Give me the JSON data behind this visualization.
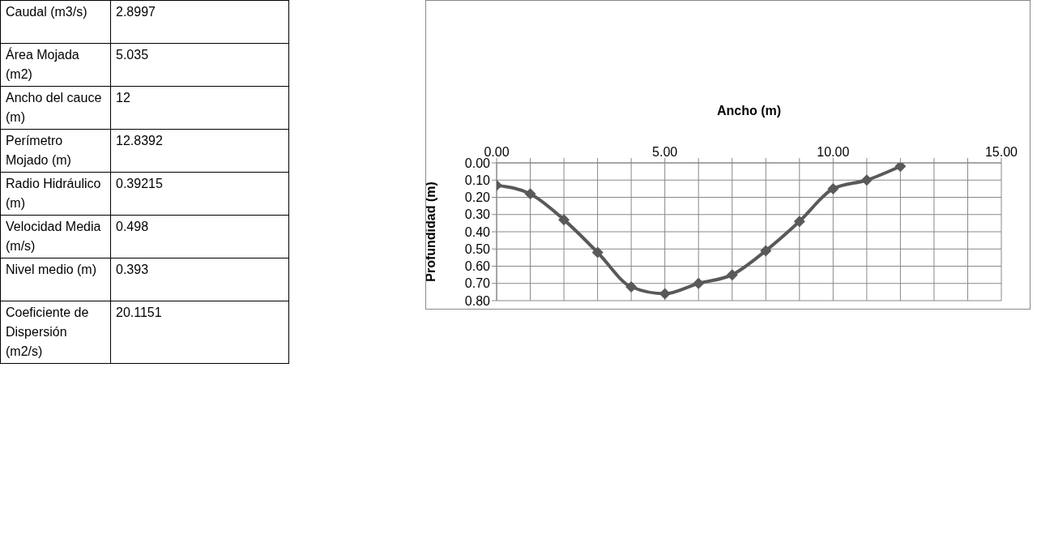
{
  "chart_data": [
    {
      "type": "other",
      "annotations": [
        "Caudal (m3/s)",
        "2.8997",
        "Área Mojada (m2)",
        "5.035",
        "Ancho del cauce (m)",
        "12",
        "Perímetro Mojado (m)",
        "12.8392",
        "Radio Hidráulico (m)",
        "0.39215",
        "Velocidad Media (m/s)",
        "0.498",
        "Nivel medio (m)",
        "0.393",
        "Coeficiente de Dispersión (m2/s)",
        "20.1151"
      ]
    },
    {
      "type": "line",
      "xlabel": "Ancho (m)",
      "ylabel": "Profundidad (m)",
      "x": [
        0,
        1,
        2,
        3,
        4,
        5,
        6,
        7,
        8,
        9,
        10,
        11,
        12
      ],
      "values": [
        0.13,
        0.18,
        0.33,
        0.52,
        0.72,
        0.76,
        0.7,
        0.65,
        0.51,
        0.34,
        0.15,
        0.1,
        0.02
      ],
      "color": "#595959",
      "marker": "diamond",
      "grid": true,
      "xlim": [
        0,
        15
      ],
      "xticks": [
        {
          "value": 0,
          "label": "0.00"
        },
        {
          "value": 1,
          "label": null
        },
        {
          "value": 2,
          "label": null
        },
        {
          "value": 3,
          "label": null
        },
        {
          "value": 4,
          "label": null
        },
        {
          "value": 5,
          "label": "5.00"
        },
        {
          "value": 6,
          "label": null
        },
        {
          "value": 7,
          "label": null
        },
        {
          "value": 8,
          "label": null
        },
        {
          "value": 9,
          "label": null
        },
        {
          "value": 10,
          "label": "10.00"
        },
        {
          "value": 11,
          "label": null
        },
        {
          "value": 12,
          "label": null
        },
        {
          "value": 13,
          "label": null
        },
        {
          "value": 14,
          "label": null
        },
        {
          "value": 15,
          "label": "15.00"
        }
      ],
      "ylim": [
        0.8,
        0
      ],
      "yticks": [
        {
          "value": 0,
          "label": "0.00"
        },
        {
          "value": 0.1,
          "label": "0.10"
        },
        {
          "value": 0.2,
          "label": "0.20"
        },
        {
          "value": 0.3,
          "label": "0.30"
        },
        {
          "value": 0.4,
          "label": "0.40"
        },
        {
          "value": 0.5,
          "label": "0.50"
        },
        {
          "value": 0.6,
          "label": "0.60"
        },
        {
          "value": 0.7,
          "label": "0.70"
        },
        {
          "value": 0.8,
          "label": "0.80"
        }
      ]
    }
  ]
}
